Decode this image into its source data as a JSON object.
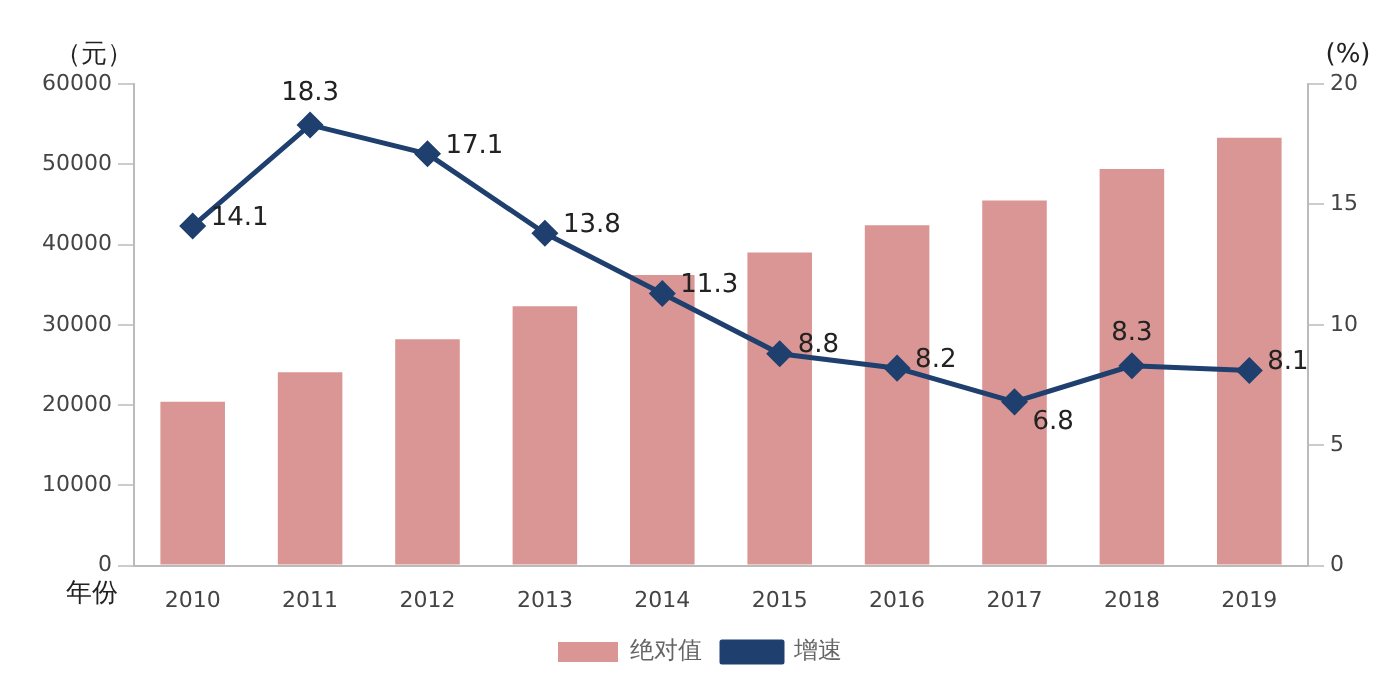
{
  "chart_data": {
    "type": "bar",
    "ylabel": "（元）",
    "y2label": "(%)",
    "xlabel": "年份",
    "categories": [
      "2010",
      "2011",
      "2012",
      "2013",
      "2014",
      "2015",
      "2016",
      "2017",
      "2018",
      "2019"
    ],
    "series": [
      {
        "name": "绝对值",
        "color": "#d99694",
        "values": [
          20400,
          24100,
          28200,
          32300,
          36200,
          39000,
          42400,
          45500,
          49400,
          53300
        ]
      },
      {
        "name": "增速",
        "type": "line",
        "axis": "y2",
        "color": "#1f3f6e",
        "values": [
          14.1,
          18.3,
          17.1,
          13.8,
          11.3,
          8.8,
          8.2,
          6.8,
          8.3,
          8.1
        ],
        "data_labels": true
      }
    ],
    "ylim": [
      0,
      60000
    ],
    "yticks": [
      0,
      10000,
      20000,
      30000,
      40000,
      50000,
      60000
    ],
    "y2lim": [
      0,
      20
    ],
    "y2ticks": [
      0,
      5,
      10,
      15,
      20
    ],
    "marker": "diamond",
    "grid": false,
    "legend": "bottom"
  }
}
